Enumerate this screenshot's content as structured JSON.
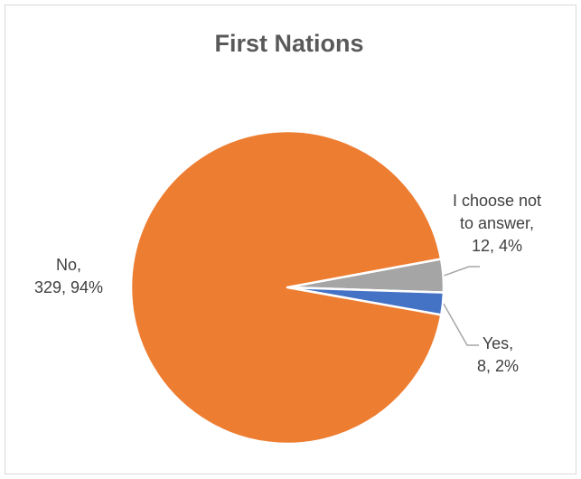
{
  "chart_data": {
    "type": "pie",
    "title": "First Nations",
    "slices": [
      {
        "name": "I choose not to answer",
        "value": 12,
        "percent": "4%",
        "color": "#a5a5a5",
        "label_lines": [
          "I choose not",
          "to answer,",
          "12, 4%"
        ]
      },
      {
        "name": "Yes",
        "value": 8,
        "percent": "2%",
        "color": "#4472c4",
        "label_lines": [
          "Yes,",
          "8, 2%"
        ]
      },
      {
        "name": "No",
        "value": 329,
        "percent": "94%",
        "color": "#ed7d31",
        "label_lines": [
          "No,",
          "329, 94%"
        ]
      }
    ],
    "start_angle_deg": 90,
    "direction": "clockwise",
    "legend": "none"
  }
}
